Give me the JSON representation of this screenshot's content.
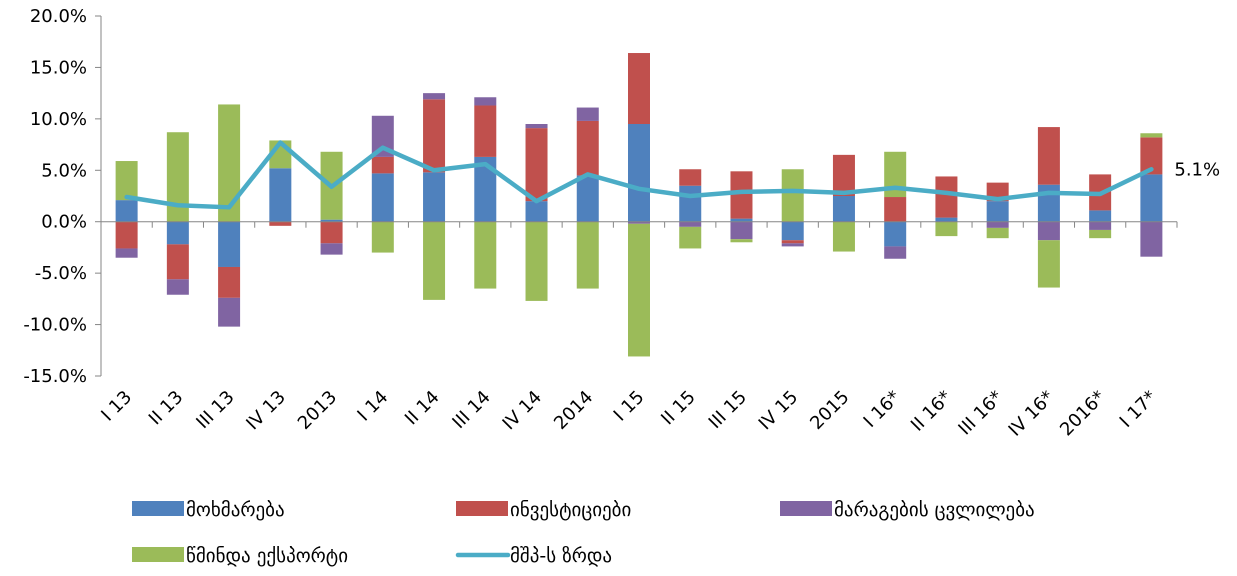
{
  "chart_data": {
    "type": "bar",
    "stacked": true,
    "title": "",
    "xlabel": "",
    "ylabel": "",
    "ylim": [
      -15,
      20
    ],
    "ytick_step": 5,
    "ytick_format": "percent_one_decimal",
    "grid": false,
    "legend_position": "bottom",
    "categories": [
      "I 13",
      "II 13",
      "III 13",
      "IV 13",
      "2013",
      "I 14",
      "II 14",
      "III 14",
      "IV 14",
      "2014",
      "I 15",
      "II 15",
      "III 15",
      "IV 15",
      "2015",
      "I 16*",
      "II 16*",
      "III 16*",
      "IV 16*",
      "2016*",
      "I 17*"
    ],
    "series": [
      {
        "name": "მოხმარება",
        "kind": "bar",
        "color": "#4F81BD",
        "values": [
          2.1,
          -2.2,
          -4.4,
          5.2,
          0.2,
          4.7,
          4.8,
          6.3,
          2.0,
          4.5,
          9.5,
          3.5,
          0.3,
          -1.8,
          2.5,
          -2.4,
          0.4,
          2.0,
          3.6,
          1.1,
          4.6
        ]
      },
      {
        "name": "ინვესტიციები",
        "kind": "bar",
        "color": "#C0504D",
        "values": [
          -2.6,
          -3.4,
          -3.0,
          -0.4,
          -2.1,
          1.6,
          7.1,
          5.0,
          7.1,
          5.3,
          6.9,
          1.6,
          4.6,
          -0.3,
          4.0,
          2.4,
          4.0,
          1.8,
          5.6,
          3.5,
          3.6
        ]
      },
      {
        "name": "მარაგების ცვლილება",
        "kind": "bar",
        "color": "#8064A2",
        "values": [
          -0.9,
          -1.5,
          -2.8,
          0.0,
          -1.1,
          4.0,
          0.6,
          0.8,
          0.4,
          1.3,
          -0.2,
          -0.5,
          -1.7,
          -0.3,
          0.0,
          -1.2,
          0.0,
          -0.6,
          -1.8,
          -0.8,
          -3.4
        ]
      },
      {
        "name": "წმინდა ექსპორტი",
        "kind": "bar",
        "color": "#9BBB59",
        "values": [
          3.8,
          8.7,
          11.4,
          2.7,
          6.6,
          -3.0,
          -7.6,
          -6.5,
          -7.7,
          -6.5,
          -12.9,
          -2.1,
          -0.3,
          5.1,
          -2.9,
          4.4,
          -1.4,
          -1.0,
          -4.6,
          -0.8,
          0.4
        ]
      },
      {
        "name": "მშპ-ს ზრდა",
        "kind": "line",
        "color": "#4BACC6",
        "values": [
          2.4,
          1.6,
          1.4,
          7.7,
          3.4,
          7.2,
          5.0,
          5.6,
          2.0,
          4.6,
          3.2,
          2.5,
          2.9,
          3.0,
          2.8,
          3.3,
          2.8,
          2.2,
          2.8,
          2.7,
          5.1
        ]
      }
    ],
    "annotations": [
      {
        "series": "მშპ-ს ზრდა",
        "category": "I 17*",
        "text": "5.1%"
      }
    ]
  }
}
